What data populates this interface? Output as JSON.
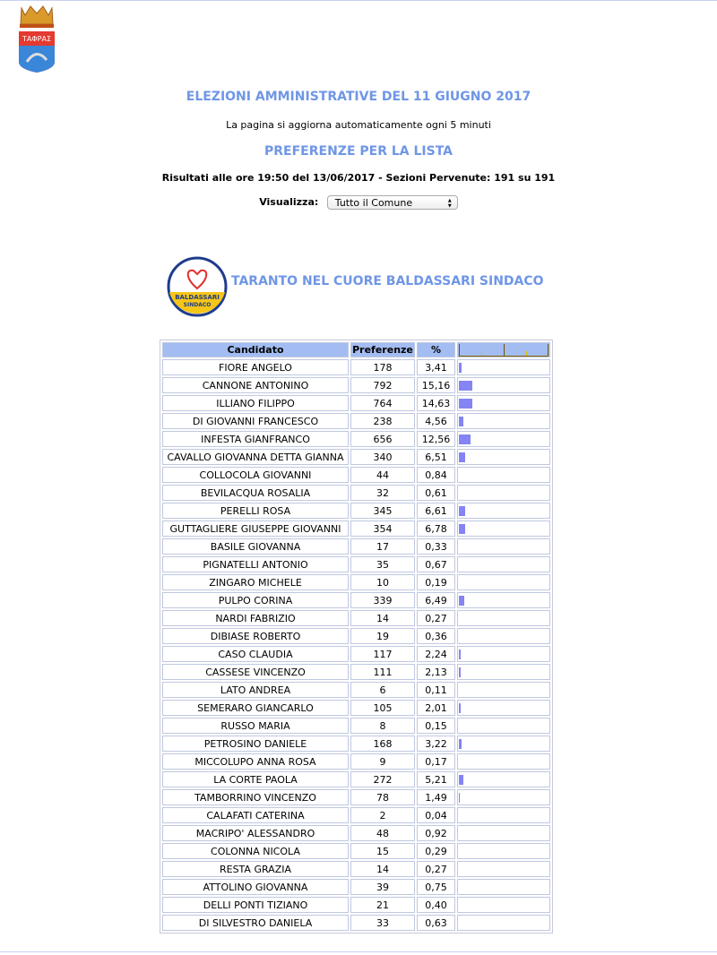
{
  "header": {
    "title": "ELEZIONI AMMINISTRATIVE DEL 11 GIUGNO 2017",
    "refresh_note": "La pagina si aggiorna automaticamente ogni 5 minuti",
    "section_title": "PREFERENZE PER LA LISTA",
    "results_line": "Risultati alle ore 19:50 del 13/06/2017 - Sezioni Pervenute: 191 su 191",
    "view_label": "Visualizza:",
    "view_selected": "Tutto il Comune"
  },
  "crest": {
    "text": "TA ΦΡΑΣ"
  },
  "list": {
    "name": "TARANTO NEL CUORE BALDASSARI SINDACO",
    "logo_text": [
      "TARANTO nel CUORE",
      "BALDASSARI",
      "SINDACO"
    ]
  },
  "colors": {
    "accent": "#6f96e6",
    "bar": "#8484f4",
    "header_bg": "#a3bdf2"
  },
  "table": {
    "columns": [
      "Candidato",
      "Preferenze",
      "%"
    ],
    "bar_scale_max_pct": 100,
    "rows": [
      [
        "FIORE ANGELO",
        "178",
        "3,41"
      ],
      [
        "CANNONE ANTONINO",
        "792",
        "15,16"
      ],
      [
        "ILLIANO FILIPPO",
        "764",
        "14,63"
      ],
      [
        "DI GIOVANNI FRANCESCO",
        "238",
        "4,56"
      ],
      [
        "INFESTA GIANFRANCO",
        "656",
        "12,56"
      ],
      [
        "CAVALLO GIOVANNA DETTA GIANNA",
        "340",
        "6,51"
      ],
      [
        "COLLOCOLA GIOVANNI",
        "44",
        "0,84"
      ],
      [
        "BEVILACQUA ROSALIA",
        "32",
        "0,61"
      ],
      [
        "PERELLI ROSA",
        "345",
        "6,61"
      ],
      [
        "GUTTAGLIERE GIUSEPPE GIOVANNI",
        "354",
        "6,78"
      ],
      [
        "BASILE GIOVANNA",
        "17",
        "0,33"
      ],
      [
        "PIGNATELLI ANTONIO",
        "35",
        "0,67"
      ],
      [
        "ZINGARO MICHELE",
        "10",
        "0,19"
      ],
      [
        "PULPO CORINA",
        "339",
        "6,49"
      ],
      [
        "NARDI FABRIZIO",
        "14",
        "0,27"
      ],
      [
        "DIBIASE ROBERTO",
        "19",
        "0,36"
      ],
      [
        "CASO CLAUDIA",
        "117",
        "2,24"
      ],
      [
        "CASSESE VINCENZO",
        "111",
        "2,13"
      ],
      [
        "LATO ANDREA",
        "6",
        "0,11"
      ],
      [
        "SEMERARO GIANCARLO",
        "105",
        "2,01"
      ],
      [
        "RUSSO MARIA",
        "8",
        "0,15"
      ],
      [
        "PETROSINO DANIELE",
        "168",
        "3,22"
      ],
      [
        "MICCOLUPO ANNA ROSA",
        "9",
        "0,17"
      ],
      [
        "LA CORTE PAOLA",
        "272",
        "5,21"
      ],
      [
        "TAMBORRINO VINCENZO",
        "78",
        "1,49"
      ],
      [
        "CALAFATI CATERINA",
        "2",
        "0,04"
      ],
      [
        "MACRIPO' ALESSANDRO",
        "48",
        "0,92"
      ],
      [
        "COLONNA NICOLA",
        "15",
        "0,29"
      ],
      [
        "RESTA GRAZIA",
        "14",
        "0,27"
      ],
      [
        "ATTOLINO GIOVANNA",
        "39",
        "0,75"
      ],
      [
        "DELLI PONTI TIZIANO",
        "21",
        "0,40"
      ],
      [
        "DI SILVESTRO DANIELA",
        "33",
        "0,63"
      ]
    ]
  }
}
